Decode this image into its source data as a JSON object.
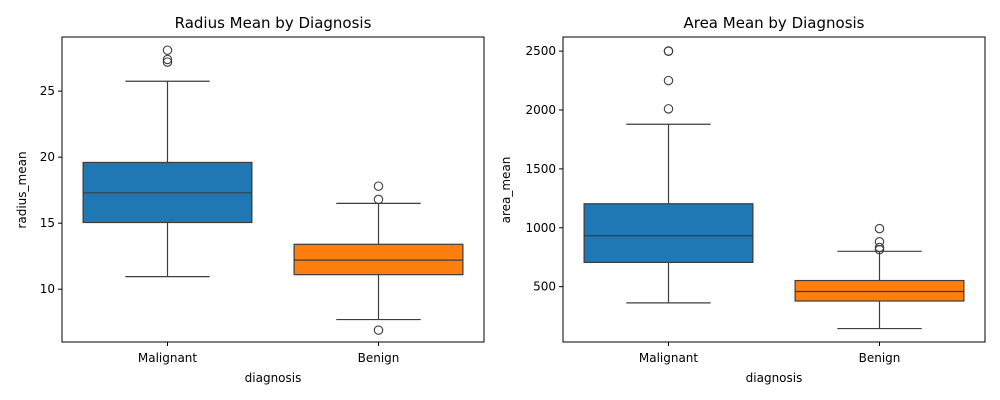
{
  "chart_data": [
    {
      "type": "boxplot",
      "title": "Radius Mean by Diagnosis",
      "xlabel": "diagnosis",
      "ylabel": "radius_mean",
      "ylim": [
        6.0,
        29.1
      ],
      "yticks": [
        10,
        15,
        20,
        25
      ],
      "categories": [
        "Malignant",
        "Benign"
      ],
      "boxes": [
        {
          "category": "Malignant",
          "color": "#1f77b4",
          "whisker_low": 10.95,
          "q1": 15.05,
          "median": 17.3,
          "q3": 19.6,
          "whisker_high": 25.75,
          "outliers": [
            27.2,
            27.4,
            28.1
          ]
        },
        {
          "category": "Benign",
          "color": "#ff7f0e",
          "whisker_low": 7.7,
          "q1": 11.1,
          "median": 12.2,
          "q3": 13.4,
          "whisker_high": 16.5,
          "outliers": [
            6.9,
            16.8,
            17.8
          ]
        }
      ]
    },
    {
      "type": "boxplot",
      "title": "Area Mean by Diagnosis",
      "xlabel": "diagnosis",
      "ylabel": "area_mean",
      "ylim": [
        30,
        2620
      ],
      "yticks": [
        500,
        1000,
        1500,
        2000,
        2500
      ],
      "categories": [
        "Malignant",
        "Benign"
      ],
      "boxes": [
        {
          "category": "Malignant",
          "color": "#1f77b4",
          "whisker_low": 362,
          "q1": 706,
          "median": 932,
          "q3": 1204,
          "whisker_high": 1879,
          "outliers": [
            2010,
            2250,
            2499,
            2501
          ]
        },
        {
          "category": "Benign",
          "color": "#ff7f0e",
          "whisker_low": 144,
          "q1": 378,
          "median": 459,
          "q3": 552,
          "whisker_high": 800,
          "outliers": [
            814,
            832,
            881,
            993
          ]
        }
      ]
    }
  ]
}
